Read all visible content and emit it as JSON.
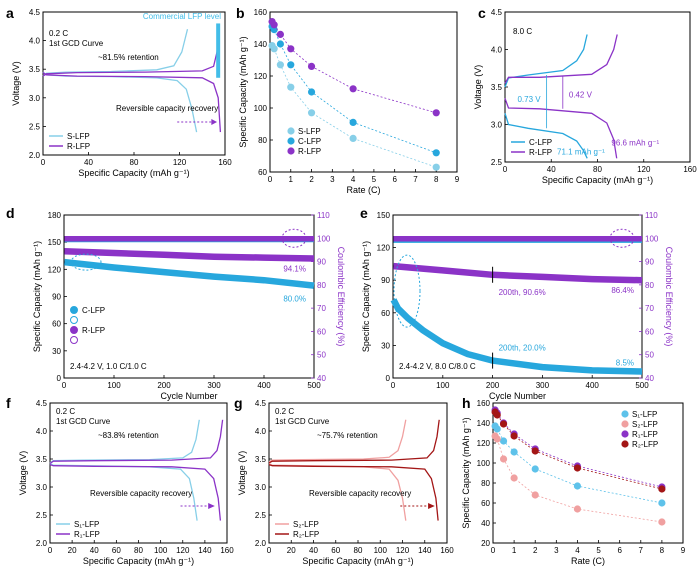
{
  "figure": {
    "colors": {
      "s_lfp": "#87cfe8",
      "c_lfp": "#27a7dd",
      "r_lfp": "#8b33c7",
      "commercial": "#42bde8",
      "s2": "#f0a0a0",
      "r2": "#a31616",
      "axis": "#000000"
    }
  },
  "chart_data": [
    {
      "panel": "a",
      "type": "line",
      "xlabel": "Specific Capacity (mAh g⁻¹)",
      "ylabel": "Voltage (V)",
      "xlim": [
        0,
        160
      ],
      "ylim": [
        2.0,
        4.5
      ],
      "xticks": [
        "0",
        "40",
        "80",
        "120",
        "160"
      ],
      "yticks": [
        "2.0",
        "2.5",
        "3.0",
        "3.5",
        "4.0",
        "4.5"
      ],
      "annotations": [
        "0.2 C",
        "1st GCD Curve",
        "~81.5% retention",
        "Commercial LFP level",
        "Reversible capacity recovery"
      ],
      "legend": [
        "S-LFP",
        "R-LFP"
      ],
      "series": [
        {
          "name": "S-LFP",
          "color": "#87cfe8",
          "charge": {
            "x": [
              0,
              3,
              20,
              60,
              100,
              115,
              122,
              127
            ],
            "y": [
              3.38,
              3.43,
              3.45,
              3.46,
              3.49,
              3.56,
              3.8,
              4.2
            ]
          },
          "discharge": {
            "x": [
              0,
              3,
              20,
              60,
              100,
              118,
              126,
              131,
              135
            ],
            "y": [
              3.45,
              3.4,
              3.38,
              3.37,
              3.35,
              3.3,
              3.15,
              2.8,
              2.4
            ]
          }
        },
        {
          "name": "R-LFP",
          "color": "#8b33c7",
          "charge": {
            "x": [
              0,
              3,
              30,
              90,
              140,
              150,
              153,
              155
            ],
            "y": [
              3.38,
              3.42,
              3.44,
              3.45,
              3.47,
              3.55,
              3.8,
              4.2
            ]
          },
          "discharge": {
            "x": [
              0,
              3,
              30,
              90,
              140,
              150,
              154,
              156
            ],
            "y": [
              3.44,
              3.4,
              3.38,
              3.37,
              3.35,
              3.25,
              3.0,
              2.4
            ]
          }
        }
      ]
    },
    {
      "panel": "b",
      "type": "scatter",
      "xlabel": "Rate (C)",
      "ylabel": "Specific Capacity (mAh g⁻¹)",
      "xlim": [
        0,
        9
      ],
      "ylim": [
        60,
        160
      ],
      "xticks": [
        "0",
        "1",
        "2",
        "3",
        "4",
        "5",
        "6",
        "7",
        "8",
        "9"
      ],
      "yticks": [
        "60",
        "80",
        "100",
        "120",
        "140",
        "160"
      ],
      "x": [
        0.1,
        0.2,
        0.5,
        1,
        2,
        4,
        8
      ],
      "series": [
        {
          "name": "S-LFP",
          "color": "#87cfe8",
          "values": [
            139,
            137,
            127,
            113,
            97,
            81,
            63
          ]
        },
        {
          "name": "C-LFP",
          "color": "#27a7dd",
          "values": [
            151,
            149,
            140,
            127,
            110,
            91,
            72
          ]
        },
        {
          "name": "R-LFP",
          "color": "#8b33c7",
          "values": [
            154,
            152,
            146,
            137,
            126,
            112,
            97
          ]
        }
      ]
    },
    {
      "panel": "c",
      "type": "line",
      "xlabel": "Specific Capacity (mAh g⁻¹)",
      "ylabel": "Voltage (V)",
      "xlim": [
        0,
        160
      ],
      "ylim": [
        2.5,
        4.5
      ],
      "xticks": [
        "0",
        "40",
        "80",
        "120",
        "160"
      ],
      "yticks": [
        "2.5",
        "3.0",
        "3.5",
        "4.0",
        "4.5"
      ],
      "annotations": [
        "8.0 C",
        "0.73 V",
        "0.42 V",
        "96.6 mAh g⁻¹",
        "71.1 mAh g⁻¹"
      ],
      "legend": [
        "C-LFP",
        "R-LFP"
      ],
      "series": [
        {
          "name": "C-LFP",
          "color": "#27a7dd",
          "charge": {
            "x": [
              0,
              3,
              20,
              50,
              62,
              68,
              71
            ],
            "y": [
              3.5,
              3.62,
              3.66,
              3.72,
              3.85,
              4.0,
              4.2
            ]
          },
          "discharge": {
            "x": [
              0,
              3,
              20,
              50,
              62,
              68,
              71.1
            ],
            "y": [
              3.15,
              3.0,
              2.95,
              2.88,
              2.78,
              2.65,
              2.55
            ]
          }
        },
        {
          "name": "R-LFP",
          "color": "#8b33c7",
          "charge": {
            "x": [
              0,
              3,
              30,
              75,
              88,
              94,
              97
            ],
            "y": [
              3.55,
              3.63,
              3.63,
              3.67,
              3.8,
              4.0,
              4.2
            ]
          },
          "discharge": {
            "x": [
              0,
              3,
              30,
              75,
              88,
              94,
              96.6
            ],
            "y": [
              3.35,
              3.22,
              3.21,
              3.15,
              3.02,
              2.8,
              2.55
            ]
          }
        }
      ]
    },
    {
      "panel": "d",
      "type": "scatter",
      "xlabel": "Cycle Number",
      "ylabel": "Specific Capacity (mAh g⁻¹)",
      "y2label": "Coulombic Efficiency (%)",
      "xlim": [
        0,
        500
      ],
      "ylim": [
        0,
        180
      ],
      "y2lim": [
        40,
        110
      ],
      "xticks": [
        "0",
        "100",
        "200",
        "300",
        "400",
        "500"
      ],
      "yticks": [
        "0",
        "30",
        "60",
        "90",
        "120",
        "150",
        "180"
      ],
      "y2ticks": [
        "40",
        "50",
        "60",
        "70",
        "80",
        "90",
        "100",
        "110"
      ],
      "annotations": [
        "2.4-4.2 V, 1.0 C/1.0 C",
        "94.1%",
        "80.0%"
      ],
      "legend": [
        "C-LFP",
        "",
        "R-LFP",
        ""
      ],
      "series": [
        {
          "name": "C-LFP",
          "color": "#27a7dd",
          "x": [
            1,
            100,
            200,
            300,
            400,
            500
          ],
          "values": [
            128,
            122,
            117,
            112,
            108,
            102
          ]
        },
        {
          "name": "R-LFP",
          "color": "#8b33c7",
          "x": [
            1,
            100,
            200,
            300,
            400,
            500
          ],
          "values": [
            140,
            138,
            136,
            134,
            133,
            132
          ]
        },
        {
          "name": "C-LFP CE",
          "color": "#27a7dd",
          "x": [
            1,
            500
          ],
          "values": [
            99.5,
            99.5
          ]
        },
        {
          "name": "R-LFP CE",
          "color": "#8b33c7",
          "x": [
            1,
            500
          ],
          "values": [
            99.8,
            99.8
          ]
        }
      ]
    },
    {
      "panel": "e",
      "type": "scatter",
      "xlabel": "Cycle Number",
      "ylabel": "Specific Capacity (mAh g⁻¹)",
      "y2label": "Coulombic Efficiency (%)",
      "xlim": [
        0,
        500
      ],
      "ylim": [
        0,
        150
      ],
      "y2lim": [
        40,
        110
      ],
      "xticks": [
        "0",
        "100",
        "200",
        "300",
        "400",
        "500"
      ],
      "yticks": [
        "0",
        "30",
        "60",
        "90",
        "120",
        "150"
      ],
      "y2ticks": [
        "40",
        "50",
        "60",
        "70",
        "80",
        "90",
        "100",
        "110"
      ],
      "annotations": [
        "2.4-4.2 V, 8.0 C/8.0 C",
        "200th, 90.6%",
        "200th, 20.0%",
        "86.4%",
        "8.5%"
      ],
      "series": [
        {
          "name": "C-LFP",
          "color": "#27a7dd",
          "x": [
            1,
            10,
            30,
            60,
            100,
            150,
            200,
            300,
            400,
            500
          ],
          "values": [
            72,
            64,
            55,
            44,
            32,
            22,
            16,
            10,
            7,
            6
          ]
        },
        {
          "name": "R-LFP",
          "color": "#8b33c7",
          "x": [
            1,
            100,
            200,
            300,
            400,
            500
          ],
          "values": [
            103,
            99,
            95,
            93,
            91,
            90
          ]
        },
        {
          "name": "C-LFP CE",
          "color": "#27a7dd",
          "x": [
            1,
            500
          ],
          "values": [
            99.2,
            99.2
          ]
        },
        {
          "name": "R-LFP CE",
          "color": "#8b33c7",
          "x": [
            1,
            500
          ],
          "values": [
            99.8,
            99.8
          ]
        }
      ]
    },
    {
      "panel": "f",
      "type": "line",
      "xlabel": "Specific Capacity (mAh g⁻¹)",
      "ylabel": "Voltage (V)",
      "xlim": [
        0,
        160
      ],
      "ylim": [
        2.0,
        4.5
      ],
      "xticks": [
        "0",
        "20",
        "40",
        "60",
        "80",
        "100",
        "120",
        "140",
        "160"
      ],
      "yticks": [
        "2.0",
        "2.5",
        "3.0",
        "3.5",
        "4.0",
        "4.5"
      ],
      "annotations": [
        "0.2 C",
        "1st GCD Curve",
        "~83.8% retention",
        "Reversible capacity recovery"
      ],
      "legend": [
        "S₁-LFP",
        "R₁-LFP"
      ],
      "series": [
        {
          "name": "S₁-LFP",
          "color": "#87cfe8",
          "charge": {
            "x": [
              0,
              3,
              30,
              90,
              120,
              128,
              132,
              135
            ],
            "y": [
              3.43,
              3.47,
              3.48,
              3.49,
              3.52,
              3.62,
              3.85,
              4.2
            ]
          },
          "discharge": {
            "x": [
              0,
              3,
              30,
              90,
              118,
              126,
              130,
              133
            ],
            "y": [
              3.42,
              3.39,
              3.38,
              3.36,
              3.32,
              3.15,
              2.8,
              2.4
            ]
          }
        },
        {
          "name": "R₁-LFP",
          "color": "#8b33c7",
          "charge": {
            "x": [
              0,
              3,
              40,
              110,
              145,
              151,
              154,
              156
            ],
            "y": [
              3.42,
              3.46,
              3.47,
              3.48,
              3.52,
              3.65,
              3.9,
              4.2
            ]
          },
          "discharge": {
            "x": [
              0,
              3,
              40,
              110,
              140,
              148,
              152,
              154
            ],
            "y": [
              3.4,
              3.38,
              3.37,
              3.36,
              3.32,
              3.15,
              2.8,
              2.4
            ]
          }
        }
      ]
    },
    {
      "panel": "g",
      "type": "line",
      "xlabel": "Specific Capacity (mAh g⁻¹)",
      "ylabel": "Voltage (V)",
      "xlim": [
        0,
        160
      ],
      "ylim": [
        2.0,
        4.5
      ],
      "xticks": [
        "0",
        "20",
        "40",
        "60",
        "80",
        "100",
        "120",
        "140",
        "160"
      ],
      "yticks": [
        "2.0",
        "2.5",
        "3.0",
        "3.5",
        "4.0",
        "4.5"
      ],
      "annotations": [
        "0.2 C",
        "1st GCD Curve",
        "~75.7% retention",
        "Reversible capacity recovery"
      ],
      "legend": [
        "S₂-LFP",
        "R₂-LFP"
      ],
      "series": [
        {
          "name": "S₂-LFP",
          "color": "#f0a0a0",
          "charge": {
            "x": [
              0,
              3,
              30,
              85,
              108,
              116,
              120,
              123
            ],
            "y": [
              3.45,
              3.48,
              3.49,
              3.5,
              3.53,
              3.65,
              3.9,
              4.2
            ]
          },
          "discharge": {
            "x": [
              0,
              3,
              30,
              85,
              108,
              116,
              120,
              123
            ],
            "y": [
              3.42,
              3.39,
              3.38,
              3.36,
              3.32,
              3.12,
              2.8,
              2.4
            ]
          }
        },
        {
          "name": "R₂-LFP",
          "color": "#a31616",
          "charge": {
            "x": [
              0,
              3,
              40,
              110,
              142,
              148,
              151,
              153
            ],
            "y": [
              3.43,
              3.46,
              3.47,
              3.48,
              3.52,
              3.65,
              3.9,
              4.2
            ]
          },
          "discharge": {
            "x": [
              0,
              3,
              40,
              110,
              140,
              146,
              150,
              152
            ],
            "y": [
              3.4,
              3.38,
              3.37,
              3.36,
              3.32,
              3.15,
              2.8,
              2.4
            ]
          }
        }
      ]
    },
    {
      "panel": "h",
      "type": "scatter",
      "xlabel": "Rate (C)",
      "ylabel": "Specific Capacity (mAh g⁻¹)",
      "xlim": [
        0,
        9
      ],
      "ylim": [
        20,
        160
      ],
      "xticks": [
        "0",
        "1",
        "2",
        "3",
        "4",
        "5",
        "6",
        "7",
        "8",
        "9"
      ],
      "yticks": [
        "20",
        "40",
        "60",
        "80",
        "100",
        "120",
        "140",
        "160"
      ],
      "x": [
        0.1,
        0.2,
        0.5,
        1,
        2,
        4,
        8
      ],
      "series": [
        {
          "name": "S₁-LFP",
          "color": "#5ec2ea",
          "values": [
            137,
            134,
            122,
            111,
            94,
            77,
            60
          ]
        },
        {
          "name": "S₂-LFP",
          "color": "#f0a0a0",
          "values": [
            127,
            124,
            104,
            85,
            68,
            54,
            41
          ]
        },
        {
          "name": "R₁-LFP",
          "color": "#8b33c7",
          "values": [
            153,
            150,
            140,
            129,
            114,
            97,
            76
          ]
        },
        {
          "name": "R₂-LFP",
          "color": "#a31616",
          "values": [
            151,
            148,
            139,
            127,
            112,
            95,
            74
          ]
        }
      ]
    }
  ]
}
